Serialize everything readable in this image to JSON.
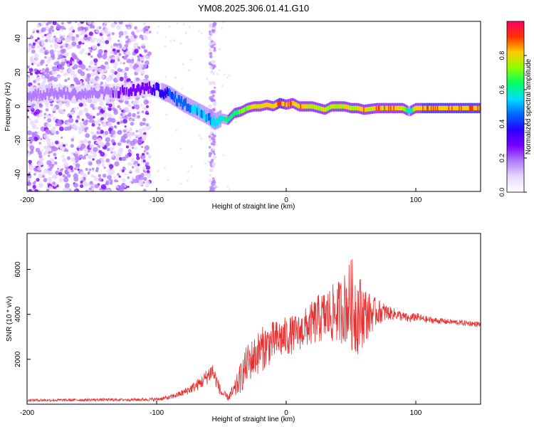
{
  "title": "YM08.2025.306.01.41.G10",
  "chart_data": [
    {
      "type": "heatmap",
      "xlabel": "Height of straight line (km)",
      "ylabel": "Frequency (Hz)",
      "xlim": [
        -200,
        150
      ],
      "ylim": [
        -50,
        50
      ],
      "xticks": [
        -200,
        -100,
        0,
        100
      ],
      "yticks": [
        -40,
        -20,
        0,
        20,
        40
      ],
      "colorbar": {
        "label": "Normalized spectral amplitude",
        "ticks": [
          "0.0",
          "0.2",
          "0.4",
          "0.6",
          "0.8"
        ],
        "range": [
          0,
          1
        ],
        "colors": [
          "#ffffff",
          "#e8d8ff",
          "#b27bff",
          "#7a00ff",
          "#2a00ff",
          "#0066ff",
          "#00ddff",
          "#00ff66",
          "#8cff00",
          "#ffcc00",
          "#ff3300",
          "#ff0066"
        ]
      },
      "ridge": {
        "x": [
          -200,
          -180,
          -160,
          -140,
          -120,
          -110,
          -100,
          -90,
          -80,
          -70,
          -60,
          -55,
          -50,
          -45,
          -40,
          -35,
          -30,
          -25,
          -20,
          -15,
          -10,
          -5,
          0,
          5,
          10,
          15,
          20,
          25,
          30,
          35,
          40,
          45,
          50,
          55,
          60,
          70,
          80,
          90,
          95,
          100,
          110,
          120,
          130,
          140,
          150
        ],
        "y": [
          6,
          8,
          7,
          8,
          9,
          11,
          10,
          7,
          2,
          -2,
          -6,
          -9,
          -7,
          -8,
          -4,
          -3,
          -1,
          0,
          0,
          1,
          0,
          2,
          1,
          2,
          0,
          0,
          0,
          -1,
          -2,
          0,
          0,
          0,
          -1,
          -1,
          -2,
          -1,
          -1,
          -1,
          -3,
          -1,
          -1,
          -1,
          -1,
          -1,
          -1
        ],
        "amplitude": [
          0.15,
          0.18,
          0.2,
          0.22,
          0.25,
          0.3,
          0.35,
          0.45,
          0.5,
          0.55,
          0.55,
          0.6,
          0.62,
          0.65,
          0.7,
          0.75,
          0.8,
          0.85,
          0.85,
          0.9,
          0.9,
          0.92,
          0.9,
          0.9,
          0.9,
          0.85,
          0.85,
          0.82,
          0.8,
          0.8,
          0.82,
          0.82,
          0.8,
          0.85,
          0.88,
          0.9,
          0.9,
          0.88,
          0.6,
          0.9,
          0.92,
          0.92,
          0.92,
          0.92,
          0.92
        ]
      }
    },
    {
      "type": "line",
      "xlabel": "Height of straight line (km)",
      "ylabel": "SNR (10 * v/v)",
      "xlim": [
        -200,
        150
      ],
      "ylim": [
        0,
        7600
      ],
      "xticks": [
        -200,
        -100,
        0,
        100
      ],
      "yticks": [
        2000,
        4000,
        6000
      ],
      "series": [
        {
          "color": "#e83030",
          "x": [
            -200,
            -180,
            -160,
            -140,
            -120,
            -100,
            -90,
            -80,
            -75,
            -70,
            -65,
            -60,
            -57,
            -55,
            -50,
            -45,
            -40,
            -35,
            -30,
            -25,
            -20,
            -15,
            -10,
            -5,
            0,
            5,
            10,
            15,
            20,
            25,
            30,
            35,
            40,
            45,
            50,
            52,
            55,
            60,
            65,
            70,
            75,
            80,
            85,
            90,
            95,
            100,
            105,
            110,
            120,
            130,
            140,
            150
          ],
          "y": [
            180,
            180,
            190,
            200,
            200,
            220,
            300,
            500,
            650,
            800,
            1000,
            1300,
            1500,
            1200,
            500,
            300,
            600,
            1200,
            1800,
            2100,
            2400,
            2600,
            2800,
            2900,
            3000,
            3100,
            3200,
            3400,
            3600,
            3800,
            3900,
            4000,
            4100,
            4300,
            4500,
            4300,
            4100,
            4000,
            4000,
            4100,
            4100,
            4050,
            4000,
            3900,
            3800,
            3900,
            3800,
            3750,
            3700,
            3650,
            3600,
            3550
          ],
          "noise": [
            60,
            60,
            60,
            60,
            60,
            80,
            100,
            150,
            200,
            250,
            300,
            400,
            450,
            400,
            200,
            150,
            400,
            700,
            900,
            900,
            1000,
            1000,
            900,
            900,
            900,
            850,
            800,
            900,
            1000,
            1100,
            1200,
            1300,
            1400,
            1600,
            2000,
            2200,
            1900,
            1400,
            900,
            600,
            450,
            300,
            250,
            220,
            200,
            200,
            160,
            150,
            130,
            120,
            120,
            120
          ]
        }
      ]
    }
  ]
}
